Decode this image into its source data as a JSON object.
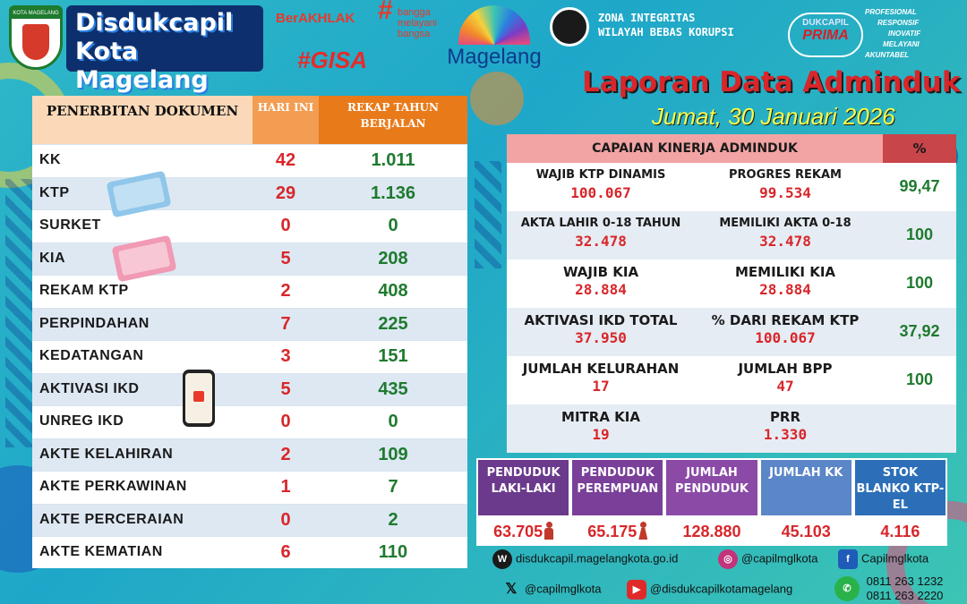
{
  "header": {
    "city_badge": "KOTA MAGELANG",
    "title_line1": "Disdukcapil",
    "title_line2": "Kota Magelang",
    "berakhlak": "BerAKHLAK",
    "bangga": "bangga melayani bangsa",
    "gisa": "#GISA",
    "magelang": "Magelang",
    "zi_line1": "ZONA INTEGRITAS",
    "zi_line2": "WILAYAH BEBAS KORUPSI",
    "prima_top": "DUKCAPIL",
    "prima_bottom": "PRIMA",
    "values": [
      "PROFESIONAL",
      "RESPONSIF",
      "INOVATIF",
      "MELAYANI",
      "AKUNTABEL"
    ]
  },
  "report": {
    "title": "Laporan Data Adminduk",
    "date": "Jumat, 30 Januari 2026"
  },
  "documents": {
    "header_doc": "PENERBITAN DOKUMEN",
    "header_today": "HARI INI",
    "header_year": "REKAP TAHUN BERJALAN",
    "rows": [
      {
        "name": "KK",
        "today": "42",
        "year": "1.011"
      },
      {
        "name": "KTP",
        "today": "29",
        "year": "1.136"
      },
      {
        "name": "SURKET",
        "today": "0",
        "year": "0"
      },
      {
        "name": "KIA",
        "today": "5",
        "year": "208"
      },
      {
        "name": "REKAM KTP",
        "today": "2",
        "year": "408"
      },
      {
        "name": "PERPINDAHAN",
        "today": "7",
        "year": "225"
      },
      {
        "name": "KEDATANGAN",
        "today": "3",
        "year": "151"
      },
      {
        "name": "AKTIVASI IKD",
        "today": "5",
        "year": "435"
      },
      {
        "name": "UNREG IKD",
        "today": "0",
        "year": "0"
      },
      {
        "name": "AKTE KELAHIRAN",
        "today": "2",
        "year": "109"
      },
      {
        "name": "AKTE PERKAWINAN",
        "today": "1",
        "year": "7"
      },
      {
        "name": "AKTE PERCERAIAN",
        "today": "0",
        "year": "2"
      },
      {
        "name": "AKTE KEMATIAN",
        "today": "6",
        "year": "110"
      }
    ]
  },
  "performance": {
    "title": "CAPAIAN KINERJA ADMINDUK",
    "pct_header": "%",
    "rows": [
      {
        "l1": "WAJIB KTP DINAMIS",
        "v1": "100.067",
        "l2": "PROGRES REKAM",
        "v2": "99.534",
        "pct": "99,47"
      },
      {
        "l1": "AKTA LAHIR 0-18 TAHUN",
        "v1": "32.478",
        "l2": "MEMILIKI AKTA 0-18",
        "v2": "32.478",
        "pct": "100"
      },
      {
        "l1": "WAJIB KIA",
        "v1": "28.884",
        "l2": "MEMILIKI KIA",
        "v2": "28.884",
        "pct": "100"
      },
      {
        "l1": "AKTIVASI IKD TOTAL",
        "v1": "37.950",
        "l2": "% DARI REKAM KTP",
        "v2": "100.067",
        "pct": "37,92"
      },
      {
        "l1": "JUMLAH KELURAHAN",
        "v1": "17",
        "l2": "JUMLAH BPP",
        "v2": "47",
        "pct": "100"
      },
      {
        "l1": "MITRA KIA",
        "v1": "19",
        "l2": "PRR",
        "v2": "1.330",
        "pct": ""
      }
    ]
  },
  "stats": [
    {
      "label": "PENDUDUK LAKI-LAKI",
      "value": "63.705",
      "color": "#6b3a8c"
    },
    {
      "label": "PENDUDUK PEREMPUAN",
      "value": "65.175",
      "color": "#7a3f99"
    },
    {
      "label": "JUMLAH PENDUDUK",
      "value": "128.880",
      "color": "#8a4aa6"
    },
    {
      "label": "JUMLAH KK",
      "value": "45.103",
      "color": "#5b86c8"
    },
    {
      "label": "STOK BLANKO KTP-EL",
      "value": "4.116",
      "color": "#2c6fb8"
    }
  ],
  "footer": {
    "website": "disdukcapil.magelangkota.go.id",
    "instagram": "@capilmglkota",
    "facebook": "Capilmglkota",
    "x": "@capilmglkota",
    "youtube": "@disdukcapilkotamagelang",
    "phone1": "0811 263 1232",
    "phone2": "0811 263 2220"
  },
  "colors": {
    "background": "#2fb8c8",
    "red_value": "#d8262a",
    "green_value": "#1e7a2e",
    "title_red": "#d8262a",
    "date_yellow": "#f6ff4a"
  }
}
